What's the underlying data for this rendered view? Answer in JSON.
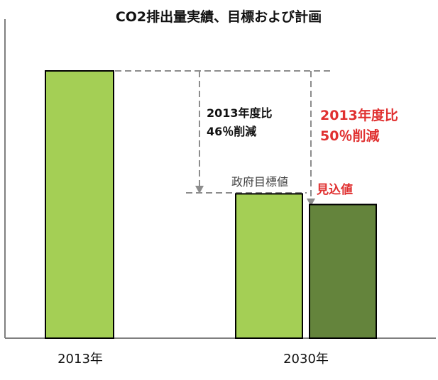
{
  "colors": {
    "bar_light": "#a4cf55",
    "bar_dark": "#64843c",
    "bar_outline": "#000000",
    "axis": "#7f7f7f",
    "guide": "#8c8c8c",
    "red_text": "#e03030"
  },
  "chart_data": {
    "type": "bar",
    "title": "CO2排出量実績、目標および計画",
    "xlabel": "",
    "ylabel": "",
    "categories": [
      "2013年",
      "2030年"
    ],
    "ylim": [
      0,
      100
    ],
    "grid": false,
    "legend": "none",
    "bars": [
      {
        "category": "2013年",
        "label": "",
        "value": 100,
        "color": "#a4cf55"
      },
      {
        "category": "2030年",
        "label": "政府目標値",
        "value": 54,
        "color": "#a4cf55"
      },
      {
        "category": "2030年",
        "label": "見込値",
        "value": 50,
        "color": "#64843c"
      }
    ],
    "annotations": {
      "target_line1": "2013年度比",
      "target_line2": "46％削減",
      "forecast_line1": "2013年度比",
      "forecast_line2": "50％削減",
      "target_label": "政府目標値",
      "forecast_label": "見込値"
    }
  }
}
